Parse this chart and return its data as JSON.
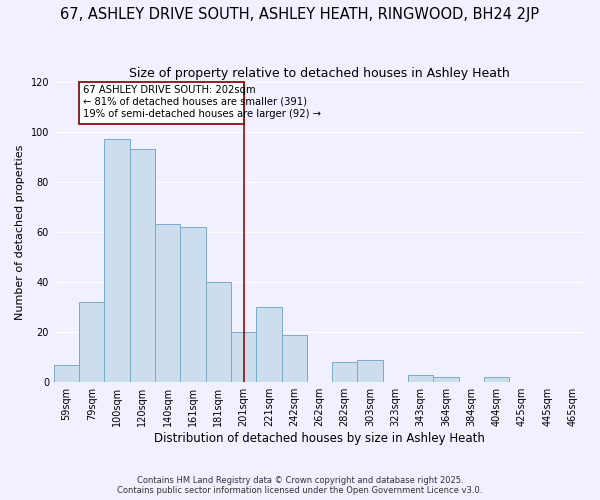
{
  "title": "67, ASHLEY DRIVE SOUTH, ASHLEY HEATH, RINGWOOD, BH24 2JP",
  "subtitle": "Size of property relative to detached houses in Ashley Heath",
  "xlabel": "Distribution of detached houses by size in Ashley Heath",
  "ylabel": "Number of detached properties",
  "bar_color": "#ccdded",
  "bar_edge_color": "#7aaac8",
  "background_color": "#f0f0ff",
  "grid_color": "#ffffff",
  "bins": [
    "59sqm",
    "79sqm",
    "100sqm",
    "120sqm",
    "140sqm",
    "161sqm",
    "181sqm",
    "201sqm",
    "221sqm",
    "242sqm",
    "262sqm",
    "282sqm",
    "303sqm",
    "323sqm",
    "343sqm",
    "364sqm",
    "384sqm",
    "404sqm",
    "425sqm",
    "445sqm",
    "465sqm"
  ],
  "values": [
    7,
    32,
    97,
    93,
    63,
    62,
    40,
    20,
    30,
    19,
    0,
    8,
    9,
    0,
    3,
    2,
    0,
    2,
    0,
    0,
    0
  ],
  "ylim": [
    0,
    120
  ],
  "yticks": [
    0,
    20,
    40,
    60,
    80,
    100,
    120
  ],
  "property_line_idx": 7,
  "annotation_title": "67 ASHLEY DRIVE SOUTH: 202sqm",
  "annotation_line1": "← 81% of detached houses are smaller (391)",
  "annotation_line2": "19% of semi-detached houses are larger (92) →",
  "box_color": "#8b1010",
  "footer1": "Contains HM Land Registry data © Crown copyright and database right 2025.",
  "footer2": "Contains public sector information licensed under the Open Government Licence v3.0."
}
